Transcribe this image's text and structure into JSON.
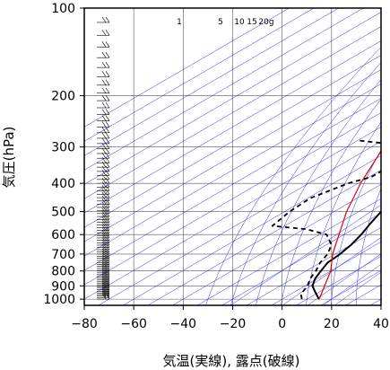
{
  "chart_data": {
    "type": "line",
    "subtype": "skew-t log-p thermodynamic diagram",
    "xlabel": "気温(実線), 露点(破線)",
    "ylabel": "気圧(hPa)",
    "x_ticks": [
      -80,
      -60,
      -40,
      -20,
      0,
      20,
      40
    ],
    "y_ticks": [
      100,
      200,
      300,
      400,
      500,
      600,
      700,
      800,
      900,
      1000
    ],
    "xlim": [
      -80,
      40
    ],
    "ylim": [
      1050,
      100
    ],
    "y_scale": "log",
    "mixing_ratio_labels": [
      "1",
      "5",
      "10",
      "15",
      "20g"
    ],
    "grid": true,
    "series": [
      {
        "role": "temperature",
        "style": "solid",
        "points": [
          [
            1000,
            15
          ],
          [
            975,
            12
          ],
          [
            950,
            9
          ],
          [
            925,
            6
          ],
          [
            900,
            3
          ],
          [
            850,
            -1
          ],
          [
            800,
            -4
          ],
          [
            750,
            -7
          ],
          [
            700,
            -8
          ],
          [
            650,
            -10
          ],
          [
            600,
            -13
          ],
          [
            550,
            -17
          ],
          [
            500,
            -21
          ],
          [
            450,
            -26
          ],
          [
            400,
            -30
          ],
          [
            350,
            -36
          ],
          [
            300,
            -43
          ],
          [
            260,
            -49
          ],
          [
            240,
            -51
          ],
          [
            220,
            -51
          ],
          [
            200,
            -51
          ],
          [
            180,
            -52
          ],
          [
            160,
            -53
          ],
          [
            140,
            -59
          ],
          [
            125,
            -60
          ],
          [
            112,
            -57
          ],
          [
            100,
            -58
          ]
        ]
      },
      {
        "role": "dewpoint",
        "style": "dashed",
        "points": [
          [
            1000,
            8
          ],
          [
            960,
            4
          ],
          [
            900,
            1
          ],
          [
            850,
            -3
          ],
          [
            800,
            -6
          ],
          [
            750,
            -10
          ],
          [
            700,
            -13
          ],
          [
            650,
            -18
          ],
          [
            600,
            -27
          ],
          [
            575,
            -39
          ],
          [
            560,
            -55
          ],
          [
            500,
            -58
          ],
          [
            450,
            -59
          ],
          [
            400,
            -54
          ],
          [
            380,
            -49
          ],
          [
            350,
            -49
          ],
          [
            330,
            -53
          ],
          [
            300,
            -56
          ],
          [
            290,
            -70
          ],
          [
            285,
            -80
          ]
        ]
      },
      {
        "role": "parcel",
        "style": "red",
        "points": [
          [
            1000,
            15
          ],
          [
            800,
            0
          ],
          [
            700,
            -11
          ],
          [
            600,
            -22
          ],
          [
            500,
            -35
          ],
          [
            400,
            -49
          ],
          [
            300,
            -65
          ],
          [
            215,
            -80
          ]
        ]
      }
    ],
    "wind_barbs": "right of left axis, full profile"
  }
}
